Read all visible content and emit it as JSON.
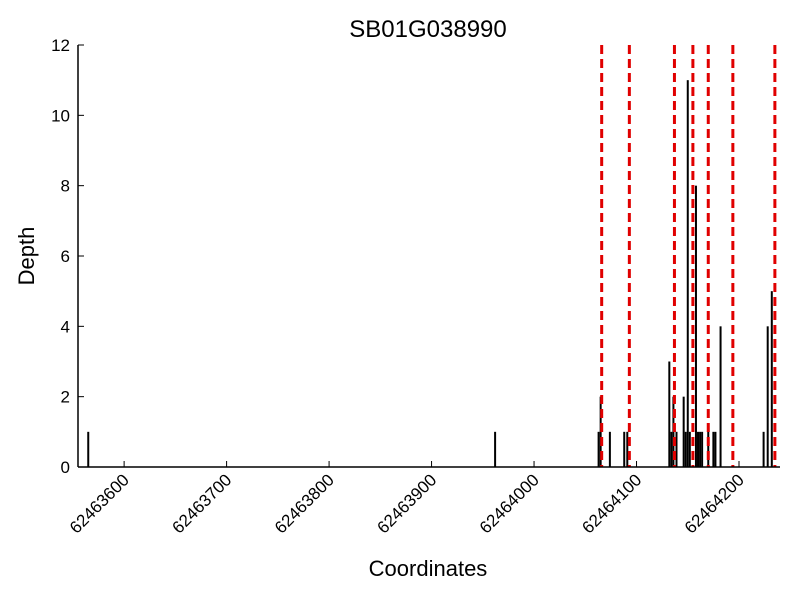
{
  "chart_data": {
    "type": "bar",
    "title": "SB01G038990",
    "xlabel": "Coordinates",
    "ylabel": "Depth",
    "xlim": [
      62463555,
      62464240
    ],
    "ylim": [
      0,
      12
    ],
    "grid": false,
    "y_ticks": [
      0,
      2,
      4,
      6,
      8,
      10,
      12
    ],
    "x_ticks": [
      62463600,
      62463700,
      62463800,
      62463900,
      62464000,
      62464100,
      62464200
    ],
    "bar_color": "#000000",
    "marker_color": "#e00000",
    "bars": [
      {
        "x": 62463565,
        "y": 1
      },
      {
        "x": 62463962,
        "y": 1
      },
      {
        "x": 62464063,
        "y": 1
      },
      {
        "x": 62464065,
        "y": 2
      },
      {
        "x": 62464074,
        "y": 1
      },
      {
        "x": 62464088,
        "y": 1
      },
      {
        "x": 62464091,
        "y": 1
      },
      {
        "x": 62464132,
        "y": 3
      },
      {
        "x": 62464134,
        "y": 1
      },
      {
        "x": 62464136,
        "y": 2
      },
      {
        "x": 62464139,
        "y": 1
      },
      {
        "x": 62464146,
        "y": 2
      },
      {
        "x": 62464148,
        "y": 1
      },
      {
        "x": 62464150,
        "y": 11
      },
      {
        "x": 62464152,
        "y": 1
      },
      {
        "x": 62464158,
        "y": 8
      },
      {
        "x": 62464160,
        "y": 1
      },
      {
        "x": 62464162,
        "y": 1
      },
      {
        "x": 62464164,
        "y": 1
      },
      {
        "x": 62464170,
        "y": 1
      },
      {
        "x": 62464175,
        "y": 1
      },
      {
        "x": 62464177,
        "y": 1
      },
      {
        "x": 62464182,
        "y": 4
      },
      {
        "x": 62464224,
        "y": 1
      },
      {
        "x": 62464228,
        "y": 4
      },
      {
        "x": 62464232,
        "y": 5
      }
    ],
    "vertical_markers": [
      62464066,
      62464093,
      62464137,
      62464155,
      62464170,
      62464194,
      62464235
    ]
  }
}
